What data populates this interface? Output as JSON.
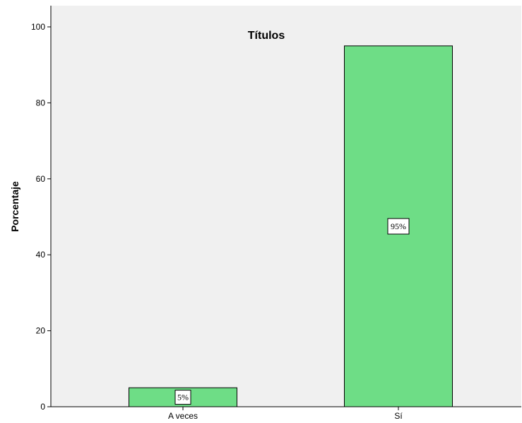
{
  "chart_data": {
    "type": "bar",
    "title": "Títulos",
    "xlabel": "",
    "ylabel": "Porcentaje",
    "categories": [
      "A veces",
      "Sí"
    ],
    "values": [
      5,
      95
    ],
    "data_labels": [
      "5%",
      "95%"
    ],
    "ylim": [
      0,
      105
    ],
    "yticks": [
      0,
      20,
      40,
      60,
      80,
      100
    ],
    "ytick_labels": [
      "0",
      "20",
      "40",
      "60",
      "80",
      "100"
    ],
    "grid": false,
    "legend": "none"
  },
  "colors": {
    "plot_background": "#f0f0f0",
    "bar_fill": "#6edd86",
    "bar_stroke": "#000000",
    "axis": "#000000",
    "label_box_fill": "#ffffff"
  }
}
